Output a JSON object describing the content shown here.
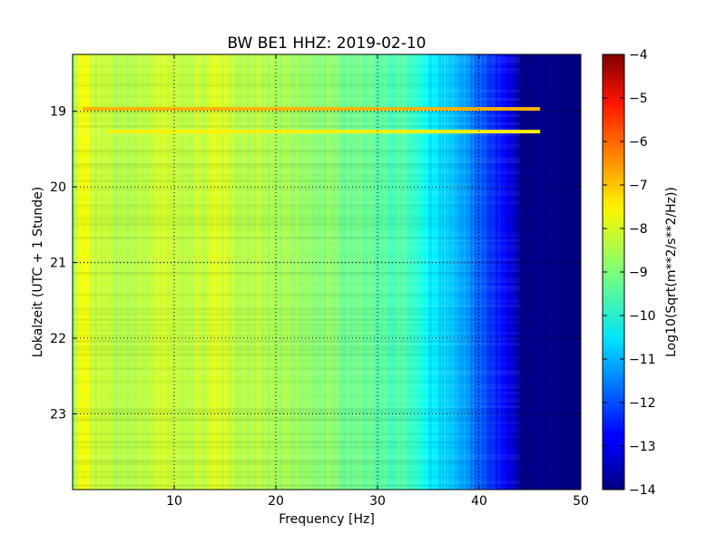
{
  "chart_data": {
    "type": "heatmap",
    "title": "BW BE1 HHZ: 2019-02-10",
    "xlabel": "Frequency [Hz]",
    "ylabel": "Lokalzeit (UTC + 1 Stunde)",
    "colorbar_label": "Log10(Sqrt(m**2/s**2/Hz))",
    "colormap": "jet",
    "grid": true,
    "xlim": [
      0,
      50
    ],
    "ylim": [
      18.25,
      24.0
    ],
    "y_inverted": true,
    "clim": [
      -14,
      -4
    ],
    "x_ticks": [
      10,
      20,
      30,
      40,
      50
    ],
    "x_tick_labels": [
      "10",
      "20",
      "30",
      "40",
      "50"
    ],
    "y_ticks": [
      19,
      20,
      21,
      22,
      23
    ],
    "y_tick_labels": [
      "19",
      "20",
      "21",
      "22",
      "23"
    ],
    "colorbar_ticks": [
      -4,
      -5,
      -6,
      -7,
      -8,
      -9,
      -10,
      -11,
      -12,
      -13,
      -14
    ],
    "colorbar_tick_labels": [
      "−4",
      "−5",
      "−6",
      "−7",
      "−8",
      "−9",
      "−10",
      "−11",
      "−12",
      "−13",
      "−14"
    ],
    "spectral_profile": {
      "frequency_hz": [
        0,
        0.5,
        1,
        1.5,
        2,
        5,
        9,
        12,
        14,
        16,
        20,
        25,
        30,
        33,
        35,
        38,
        40,
        42,
        43.5,
        44,
        45,
        50
      ],
      "level": [
        -8.6,
        -8.0,
        -7.8,
        -8.0,
        -8.3,
        -8.5,
        -8.2,
        -8.4,
        -8.0,
        -8.4,
        -8.6,
        -8.9,
        -9.3,
        -9.6,
        -10.4,
        -11.0,
        -11.8,
        -12.6,
        -13.2,
        -14.0,
        -14.0,
        -14.0
      ]
    },
    "lines": [
      {
        "time": 18.97,
        "from_hz": 1,
        "to_hz": 46,
        "level": -7.0
      },
      {
        "time": 19.27,
        "from_hz": 3.5,
        "to_hz": 46,
        "level": -7.6
      }
    ]
  }
}
